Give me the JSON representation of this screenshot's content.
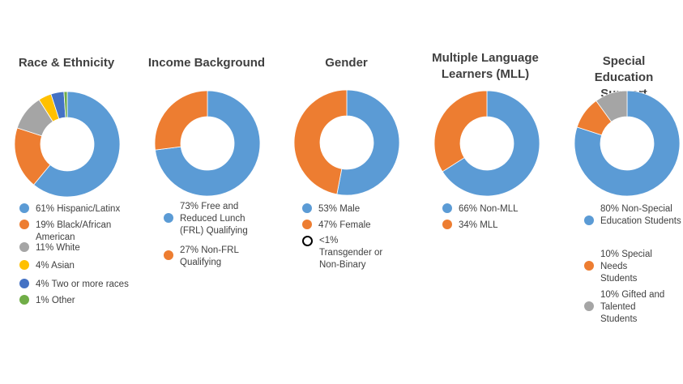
{
  "chart_data": [
    {
      "type": "pie",
      "title": "Race & Ethnicity",
      "slices": [
        {
          "label": "61% Hispanic/Latinx",
          "value": 61,
          "color": "#5B9BD5"
        },
        {
          "label": "19% Black/African American",
          "value": 19,
          "color": "#ED7D31"
        },
        {
          "label": "11% White",
          "value": 11,
          "color": "#A5A5A5"
        },
        {
          "label": "4% Asian",
          "value": 4,
          "color": "#FFC000"
        },
        {
          "label": "4% Two or more races",
          "value": 4,
          "color": "#4472C4"
        },
        {
          "label": "1% Other",
          "value": 1,
          "color": "#70AD47"
        }
      ]
    },
    {
      "type": "pie",
      "title": "Income Background",
      "slices": [
        {
          "label": "73% Free and Reduced Lunch (FRL) Qualifying",
          "value": 73,
          "color": "#5B9BD5"
        },
        {
          "label": "27% Non-FRL Qualifying",
          "value": 27,
          "color": "#ED7D31"
        }
      ]
    },
    {
      "type": "pie",
      "title": "Gender",
      "slices": [
        {
          "label": "53% Male",
          "value": 53,
          "color": "#5B9BD5"
        },
        {
          "label": "47% Female",
          "value": 47,
          "color": "#ED7D31"
        },
        {
          "label": "<1% Transgender or Non-Binary",
          "value": 0,
          "color": "#ffffff",
          "hollow": true
        }
      ]
    },
    {
      "type": "pie",
      "title": "Multiple Language Learners (MLL)",
      "slices": [
        {
          "label": "66% Non-MLL",
          "value": 66,
          "color": "#5B9BD5"
        },
        {
          "label": "34% MLL",
          "value": 34,
          "color": "#ED7D31"
        }
      ]
    },
    {
      "type": "pie",
      "title": "Special Education Support",
      "slices": [
        {
          "label": "80% Non-Special Education Students",
          "value": 80,
          "color": "#5B9BD5"
        },
        {
          "label": "10% Special Needs Students",
          "value": 10,
          "color": "#ED7D31"
        },
        {
          "label": "10% Gifted and Talented Students",
          "value": 10,
          "color": "#A5A5A5"
        }
      ]
    }
  ]
}
